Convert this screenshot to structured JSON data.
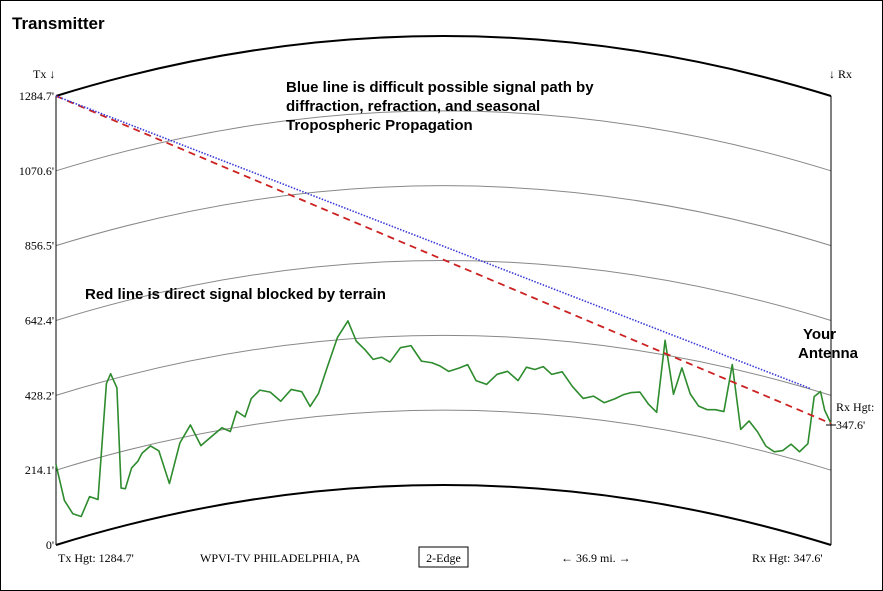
{
  "header": {
    "title": "Transmitter"
  },
  "markers": {
    "tx": "Tx ↓",
    "rx": "↓ Rx"
  },
  "annotations": {
    "blue_note": [
      "Blue line is difficult possible signal path by",
      "diffraction, refraction, and seasonal",
      "Tropospheric Propagation"
    ],
    "red_note": "Red line is direct signal blocked by terrain",
    "antenna_label": [
      "Your",
      "Antenna"
    ]
  },
  "footer": {
    "tx_hgt": "Tx Hgt: 1284.7'",
    "station": "WPVI-TV PHILADELPHIA, PA",
    "mode": "2-Edge",
    "distance": "← 36.9 mi. →",
    "rx_hgt": "Rx Hgt: 347.6'"
  },
  "rx_label": {
    "title": "Rx Hgt:",
    "value": "347.6'"
  },
  "colors": {
    "terrain": "#2e8b2e",
    "direct_path": "#cc2222",
    "diffraction_path": "#3a3ad8",
    "earth_curve": "#000000",
    "grid_curve": "#888888"
  },
  "chart_data": {
    "type": "line",
    "title": "Transmitter",
    "xlabel": "← 36.9 mi. →",
    "ylabel": "",
    "distance_mi": 36.9,
    "ylim": [
      0,
      1284.7
    ],
    "yticks": [
      0,
      214.1,
      428.2,
      642.4,
      856.5,
      1070.6,
      1284.7
    ],
    "ytick_labels": [
      "0'",
      "214.1'",
      "428.2'",
      "642.4'",
      "856.5'",
      "1070.6'",
      "1284.7'"
    ],
    "tx_height_ft": 1284.7,
    "rx_height_ft": 347.6,
    "series": [
      {
        "name": "",
        "kind": "terrain",
        "x_mi": [
          0,
          0.4,
          0.8,
          1.2,
          1.6,
          2.0,
          2.4,
          2.6,
          2.9,
          3.1,
          3.3,
          3.6,
          3.9,
          4.1,
          4.5,
          4.9,
          5.4,
          5.9,
          6.4,
          6.9,
          7.4,
          7.9,
          8.3,
          8.6,
          9.0,
          9.3,
          9.7,
          10.2,
          10.7,
          11.2,
          11.7,
          12.1,
          12.5,
          12.9,
          13.4,
          13.9,
          14.3,
          14.7,
          15.1,
          15.5,
          15.9,
          16.4,
          16.9,
          17.4,
          17.9,
          18.3,
          18.7,
          19.2,
          19.6,
          20.0,
          20.5,
          21.0,
          21.5,
          22.0,
          22.4,
          22.8,
          23.2,
          23.6,
          24.1,
          24.6,
          25.1,
          25.6,
          26.1,
          26.6,
          27.0,
          27.4,
          27.8,
          28.2,
          28.6,
          29.0,
          29.4,
          29.8,
          30.2,
          30.6,
          31.0,
          31.4,
          31.8,
          32.2,
          32.6,
          33.0,
          33.4,
          33.8,
          34.2,
          34.6,
          35.0,
          35.4,
          35.8,
          36.1,
          36.4,
          36.6,
          36.9
        ],
        "y_ft": [
          230,
          120,
          75,
          60,
          110,
          95,
          420,
          445,
          400,
          110,
          105,
          160,
          175,
          195,
          210,
          190,
          90,
          200,
          245,
          180,
          200,
          220,
          205,
          260,
          240,
          290,
          310,
          300,
          270,
          300,
          290,
          245,
          280,
          350,
          435,
          480,
          420,
          395,
          365,
          370,
          355,
          395,
          400,
          355,
          350,
          340,
          325,
          335,
          345,
          300,
          290,
          320,
          330,
          305,
          345,
          340,
          350,
          330,
          340,
          300,
          270,
          280,
          265,
          280,
          295,
          305,
          310,
          280,
          260,
          470,
          320,
          400,
          330,
          300,
          295,
          300,
          300,
          440,
          260,
          290,
          265,
          230,
          220,
          230,
          255,
          240,
          270,
          410,
          430,
          380,
          347.6
        ]
      },
      {
        "name": "",
        "kind": "direct path",
        "x_mi": [
          0,
          36.9
        ],
        "y_ft": [
          1284.7,
          347.6
        ]
      },
      {
        "name": "",
        "kind": "diffraction path",
        "x_mi": [
          0,
          35.9
        ],
        "y_ft": [
          1284.7,
          430
        ]
      }
    ]
  }
}
